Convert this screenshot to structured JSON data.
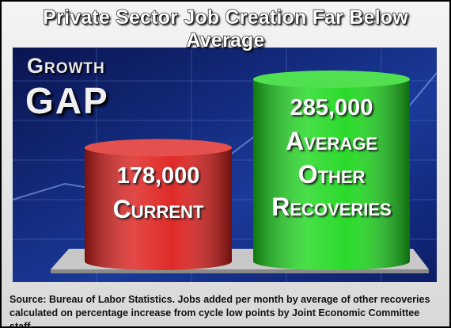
{
  "chart_data": {
    "type": "bar",
    "title": "Private Sector Job Creation Far Below Average",
    "annotations": [
      "Growth",
      "GAP"
    ],
    "categories": [
      "Current",
      "Average Other Recoveries"
    ],
    "values": [
      178000,
      285000
    ],
    "value_labels": [
      "178,000",
      "285,000"
    ],
    "colors": [
      "#dd1f1c",
      "#1fd81f"
    ],
    "source": "Source:  Bureau of Labor Statistics.  Jobs added per month by average of other recoveries calculated on percentage increase from cycle low points by Joint Economic Committee staff."
  }
}
